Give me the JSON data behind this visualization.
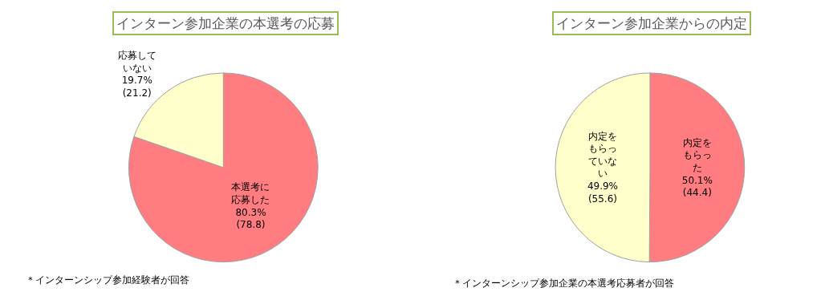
{
  "chart_data": [
    {
      "type": "pie",
      "title": "インターン参加企業の本選考の応募",
      "categories": [
        "本選考に応募した",
        "応募していない"
      ],
      "values": [
        80.3,
        19.7
      ],
      "value_labels": [
        "80.3%\n(78.8)",
        "19.7%\n(21.2)"
      ],
      "colors": [
        "#ff7c80",
        "#ffffcc"
      ],
      "annotations": [
        "＊インターンシップ参加経験者が回答"
      ]
    },
    {
      "type": "pie",
      "title": "インターン参加企業からの内定",
      "categories": [
        "内定をもらった",
        "内定をもらっていない"
      ],
      "values": [
        50.1,
        49.9
      ],
      "value_labels": [
        "50.1%\n(44.4)",
        "49.9%\n(55.6)"
      ],
      "colors": [
        "#ff7c80",
        "#ffffcc"
      ],
      "annotations": [
        "＊インターンシップ参加企業の本選考応募者が回答"
      ]
    }
  ]
}
